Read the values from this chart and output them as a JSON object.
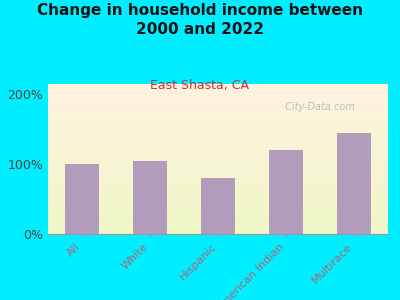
{
  "title": "Change in household income between\n2000 and 2022",
  "subtitle": "East Shasta, CA",
  "categories": [
    "All",
    "White",
    "Hispanic",
    "American Indian",
    "Multirace"
  ],
  "values": [
    100,
    105,
    80,
    120,
    145
  ],
  "bar_color": "#b39dbd",
  "title_fontsize": 11,
  "title_color": "#111111",
  "subtitle_color": "#cc3333",
  "subtitle_fontsize": 9,
  "xlabel_color": "#aa6677",
  "xlabel_fontsize": 8,
  "ytick_values": [
    0,
    100,
    200
  ],
  "ytick_labels": [
    "0%",
    "100%",
    "200%"
  ],
  "ylim": [
    0,
    215
  ],
  "bg_outer": "#00eeff",
  "bg_plot_color1": "#f5f8e8",
  "bg_plot_color2": "#e0f0d0",
  "watermark": "  City-Data.com",
  "watermark_color": "#b0b8c0",
  "watermark_fontsize": 7
}
